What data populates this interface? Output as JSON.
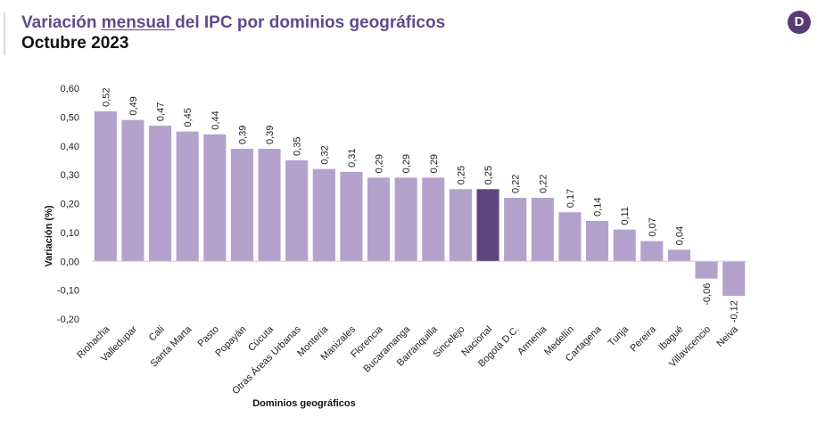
{
  "header": {
    "title_before": "Variación ",
    "title_underlined": "mensual ",
    "title_after": "del IPC por dominios geográficos",
    "subtitle": "Octubre 2023",
    "logo_letter": "D"
  },
  "colors": {
    "title": "#5f4b8b",
    "bar": "#b3a2cc",
    "bar_highlight": "#5f457e",
    "logo_bg": "#5a3a75"
  },
  "chart_data": {
    "type": "bar",
    "xlabel": "Dominios geográficos",
    "ylabel": "Variación (%)",
    "ylim": [
      -0.2,
      0.6
    ],
    "yticks": [
      "0,60",
      "0,50",
      "0,40",
      "0,30",
      "0,20",
      "0,10",
      "0,00",
      "-0,10",
      "-0,20"
    ],
    "ytick_values": [
      0.6,
      0.5,
      0.4,
      0.3,
      0.2,
      0.1,
      0.0,
      -0.1,
      -0.2
    ],
    "highlight": "Nacional",
    "categories": [
      "Riohacha",
      "Valledupar",
      "Cali",
      "Santa Marta",
      "Pasto",
      "Popayán",
      "Cúcuta",
      "Otras Áreas Urbanas",
      "Montería",
      "Manizales",
      "Florencia",
      "Bucaramanga",
      "Barranquilla",
      "Sincelejo",
      "Nacional",
      "Bogotá D.C.",
      "Armenia",
      "Medellín",
      "Cartagena",
      "Tunja",
      "Pereira",
      "Ibagué",
      "Villavicencio",
      "Neiva"
    ],
    "values": [
      0.52,
      0.49,
      0.47,
      0.45,
      0.44,
      0.39,
      0.39,
      0.35,
      0.32,
      0.31,
      0.29,
      0.29,
      0.29,
      0.25,
      0.25,
      0.22,
      0.22,
      0.17,
      0.14,
      0.11,
      0.07,
      0.04,
      -0.06,
      -0.12
    ],
    "value_labels": [
      "0,52",
      "0,49",
      "0,47",
      "0,45",
      "0,44",
      "0,39",
      "0,39",
      "0,35",
      "0,32",
      "0,31",
      "0,29",
      "0,29",
      "0,29",
      "0,25",
      "0,25",
      "0,22",
      "0,22",
      "0,17",
      "0,14",
      "0,11",
      "0,07",
      "0,04",
      "-0,06",
      "-0,12"
    ]
  }
}
